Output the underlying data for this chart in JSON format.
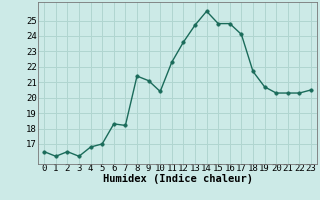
{
  "x": [
    0,
    1,
    2,
    3,
    4,
    5,
    6,
    7,
    8,
    9,
    10,
    11,
    12,
    13,
    14,
    15,
    16,
    17,
    18,
    19,
    20,
    21,
    22,
    23
  ],
  "y": [
    16.5,
    16.2,
    16.5,
    16.2,
    16.8,
    17.0,
    18.3,
    18.2,
    21.4,
    21.1,
    20.4,
    22.3,
    23.6,
    24.7,
    25.6,
    24.8,
    24.8,
    24.1,
    21.7,
    20.7,
    20.3,
    20.3,
    20.3,
    20.5
  ],
  "xlabel": "Humidex (Indice chaleur)",
  "bg_color": "#cceae7",
  "grid_color": "#b0d5d0",
  "line_color": "#1a6b5a",
  "marker_color": "#1a6b5a",
  "ylim": [
    15.7,
    26.2
  ],
  "xlim": [
    -0.5,
    23.5
  ],
  "yticks": [
    17,
    18,
    19,
    20,
    21,
    22,
    23,
    24,
    25
  ],
  "xticks": [
    0,
    1,
    2,
    3,
    4,
    5,
    6,
    7,
    8,
    9,
    10,
    11,
    12,
    13,
    14,
    15,
    16,
    17,
    18,
    19,
    20,
    21,
    22,
    23
  ],
  "xlabel_fontsize": 7.5,
  "tick_fontsize": 6.5,
  "line_width": 1.0,
  "marker_size": 2.5
}
